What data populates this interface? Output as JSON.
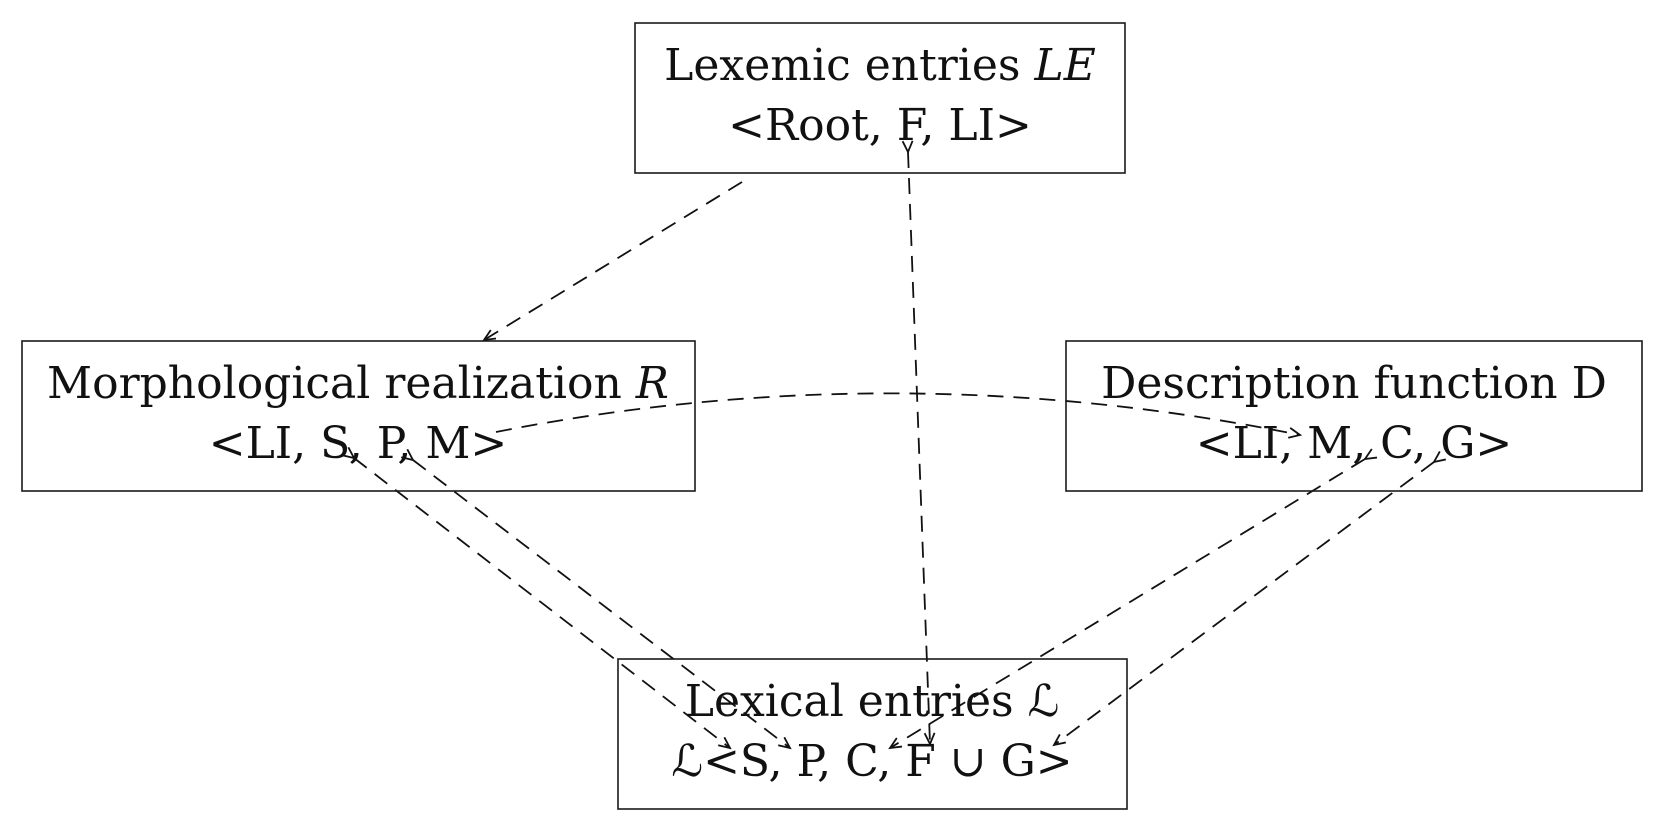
{
  "diagram": {
    "boxes": {
      "lexemic": {
        "line1_prefix": "Lexemic entries ",
        "line1_symbol": "LE",
        "line2": "<Root, F, LI>"
      },
      "morph": {
        "line1_prefix": "Morphological realization ",
        "line1_symbol": "R",
        "line2": "<LI, S, P, M>"
      },
      "desc": {
        "line1": "Description function D",
        "line2": "<LI, M, C, G>"
      },
      "lexical": {
        "line1": "Lexical entries ℒ",
        "line2": "ℒ<S, P, C, F ∪ G>"
      }
    },
    "edges": [
      {
        "from": "Lexemic entries LE",
        "to": "Morphological realization R",
        "style": "dashed",
        "direction": "forward"
      },
      {
        "from": "Morphological realization R",
        "to": "Description function D",
        "style": "dashed",
        "direction": "forward",
        "label": "M"
      },
      {
        "from": "Lexemic entries LE",
        "to": "Lexical entries ℒ",
        "style": "dashed",
        "direction": "both",
        "label": "F"
      },
      {
        "from": "Morphological realization R",
        "to": "Lexical entries ℒ",
        "style": "dashed",
        "direction": "both",
        "label": "S"
      },
      {
        "from": "Morphological realization R",
        "to": "Lexical entries ℒ",
        "style": "dashed",
        "direction": "both",
        "label": "P"
      },
      {
        "from": "Description function D",
        "to": "Lexical entries ℒ",
        "style": "dashed",
        "direction": "both",
        "label": "C"
      },
      {
        "from": "Description function D",
        "to": "Lexical entries ℒ",
        "style": "dashed",
        "direction": "both",
        "label": "G"
      }
    ],
    "colors": {
      "stroke": "#1a1a1a",
      "text": "#111111",
      "background": "#ffffff"
    }
  }
}
